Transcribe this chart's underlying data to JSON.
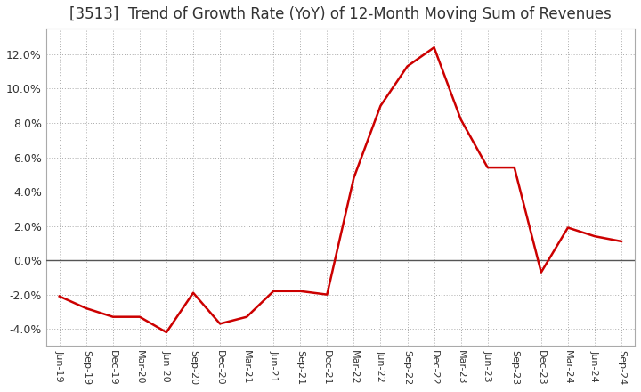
{
  "title": "[3513]  Trend of Growth Rate (YoY) of 12-Month Moving Sum of Revenues",
  "title_fontsize": 12,
  "line_color": "#cc0000",
  "line_width": 1.8,
  "background_color": "#ffffff",
  "plot_bg_color": "#ffffff",
  "grid_color": "#aaaaaa",
  "ylim": [
    -0.05,
    0.135
  ],
  "yticks": [
    -0.04,
    -0.02,
    0.0,
    0.02,
    0.04,
    0.06,
    0.08,
    0.1,
    0.12
  ],
  "labels": [
    "Jun-19",
    "Sep-19",
    "Dec-19",
    "Mar-20",
    "Jun-20",
    "Sep-20",
    "Dec-20",
    "Mar-21",
    "Jun-21",
    "Sep-21",
    "Dec-21",
    "Mar-22",
    "Jun-22",
    "Sep-22",
    "Dec-22",
    "Mar-23",
    "Jun-23",
    "Sep-23",
    "Dec-23",
    "Mar-24",
    "Jun-24",
    "Sep-24"
  ],
  "values": [
    -0.021,
    -0.028,
    -0.033,
    -0.033,
    -0.042,
    -0.019,
    -0.037,
    -0.033,
    -0.018,
    -0.018,
    -0.02,
    0.048,
    0.09,
    0.113,
    0.124,
    0.082,
    0.054,
    0.054,
    -0.007,
    0.019,
    0.014,
    0.011
  ]
}
